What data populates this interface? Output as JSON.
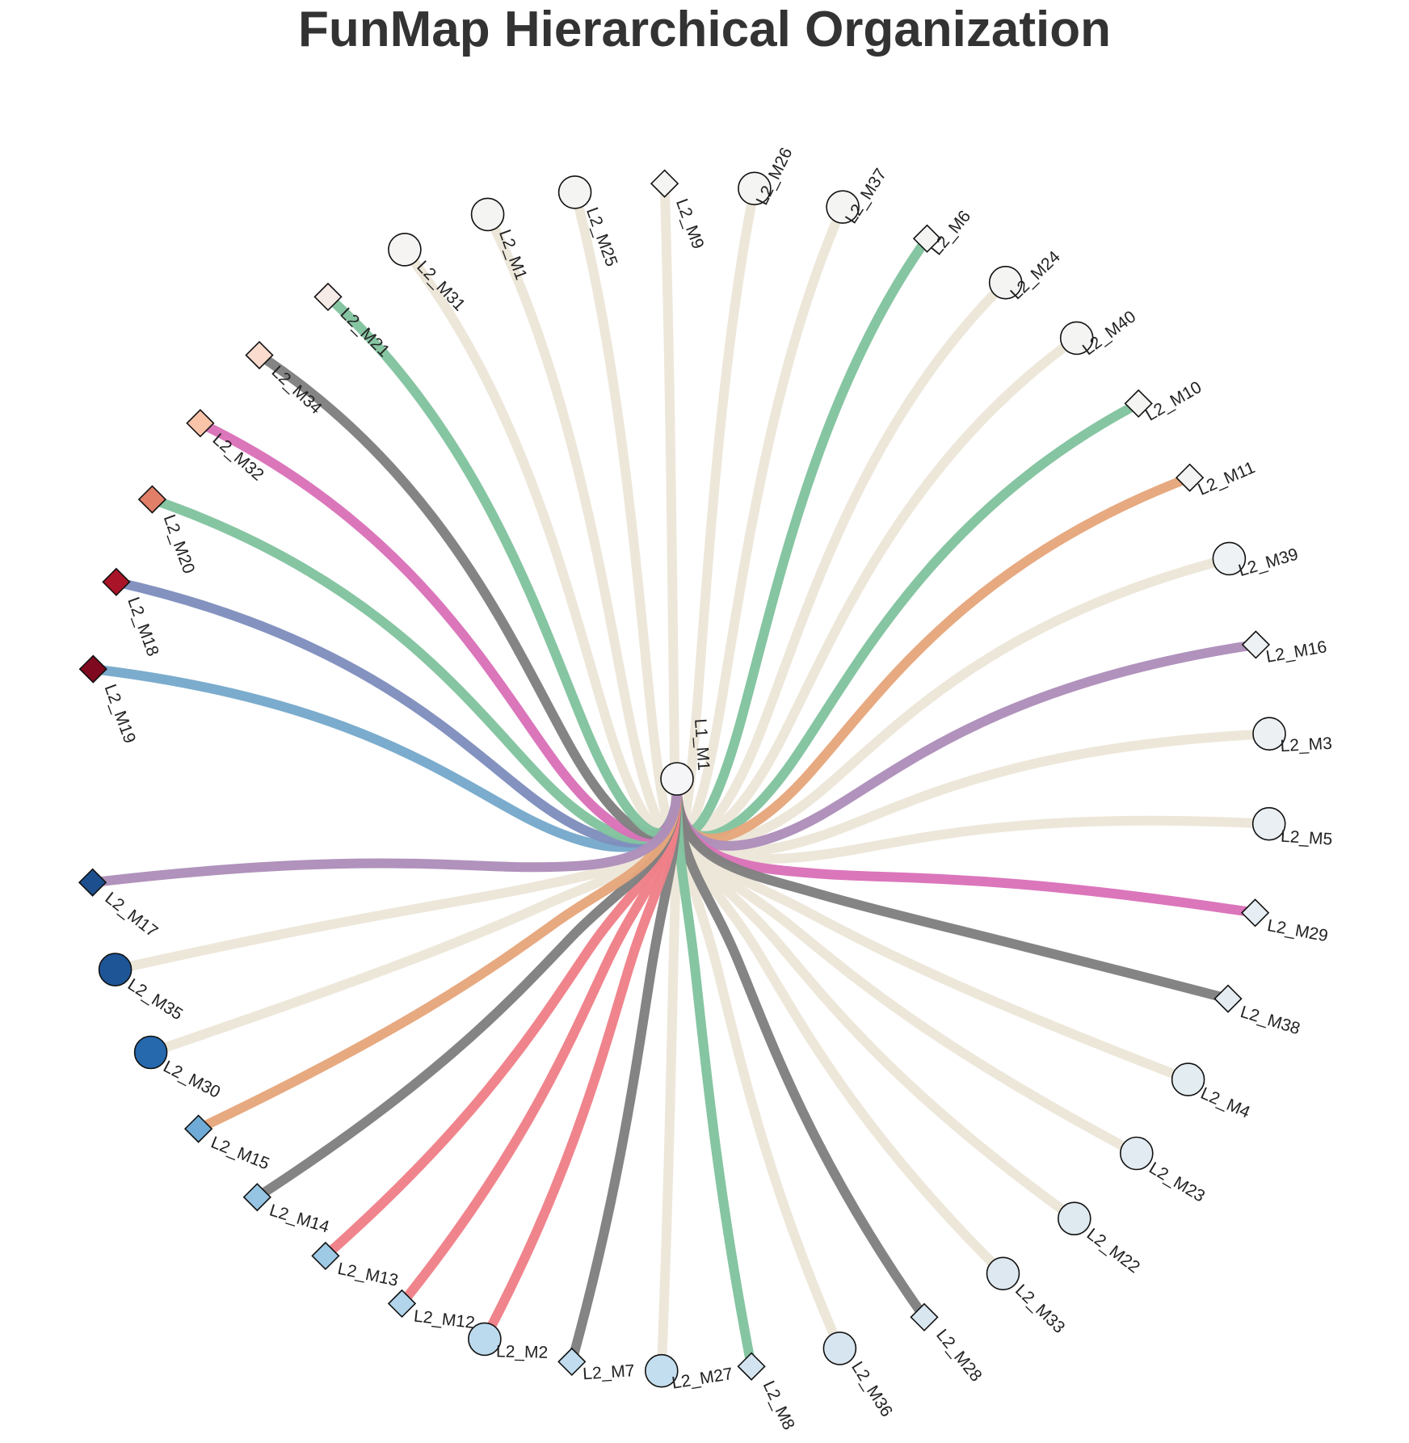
{
  "title": "FunMap Hierarchical Organization",
  "chart_data": {
    "type": "radial-tree",
    "root": {
      "name": "L1_M1",
      "fill": "#f5f5f7"
    },
    "nodes": [
      {
        "name": "L2_M19",
        "shape": "diamond",
        "fill": "#7f0a20",
        "edge": "#77a9cb"
      },
      {
        "name": "L2_M18",
        "shape": "diamond",
        "fill": "#aa1428",
        "edge": "#7f8ebd"
      },
      {
        "name": "L2_M20",
        "shape": "diamond",
        "fill": "#e17f68",
        "edge": "#82c39f"
      },
      {
        "name": "L2_M32",
        "shape": "diamond",
        "fill": "#f9c4a8",
        "edge": "#da72b9"
      },
      {
        "name": "L2_M34",
        "shape": "diamond",
        "fill": "#fbdbcd",
        "edge": "#808080"
      },
      {
        "name": "L2_M21",
        "shape": "diamond",
        "fill": "#f6ebe7",
        "edge": "#82c39f"
      },
      {
        "name": "L2_M31",
        "shape": "circle",
        "fill": "#f6f3f3",
        "edge": "#ede7da"
      },
      {
        "name": "L2_M1",
        "shape": "circle",
        "fill": "#f4f4f3",
        "edge": "#ede7da"
      },
      {
        "name": "L2_M25",
        "shape": "circle",
        "fill": "#f4f4f3",
        "edge": "#ede7da"
      },
      {
        "name": "L2_M9",
        "shape": "diamond",
        "fill": "#f4f4f3",
        "edge": "#ede7da"
      },
      {
        "name": "L2_M26",
        "shape": "circle",
        "fill": "#f4f4f3",
        "edge": "#ede7da"
      },
      {
        "name": "L2_M37",
        "shape": "circle",
        "fill": "#f4f4f3",
        "edge": "#ede7da"
      },
      {
        "name": "L2_M6",
        "shape": "diamond",
        "fill": "#f4f4f3",
        "edge": "#82c39f"
      },
      {
        "name": "L2_M24",
        "shape": "circle",
        "fill": "#f4f4f3",
        "edge": "#ede7da"
      },
      {
        "name": "L2_M40",
        "shape": "circle",
        "fill": "#f4f4f3",
        "edge": "#ede7da"
      },
      {
        "name": "L2_M10",
        "shape": "diamond",
        "fill": "#f4f4f3",
        "edge": "#82c39f"
      },
      {
        "name": "L2_M11",
        "shape": "diamond",
        "fill": "#f3f3f3",
        "edge": "#e6a67c"
      },
      {
        "name": "L2_M39",
        "shape": "circle",
        "fill": "#eff2f4",
        "edge": "#ede7da"
      },
      {
        "name": "L2_M16",
        "shape": "diamond",
        "fill": "#eef1f3",
        "edge": "#ad8eba"
      },
      {
        "name": "L2_M3",
        "shape": "circle",
        "fill": "#ecf0f3",
        "edge": "#ede7da"
      },
      {
        "name": "L2_M5",
        "shape": "circle",
        "fill": "#e9eff3",
        "edge": "#ede7da"
      },
      {
        "name": "L2_M29",
        "shape": "diamond",
        "fill": "#e7eef3",
        "edge": "#da72b9"
      },
      {
        "name": "L2_M38",
        "shape": "diamond",
        "fill": "#e5edf2",
        "edge": "#808080"
      },
      {
        "name": "L2_M4",
        "shape": "circle",
        "fill": "#e3ecf1",
        "edge": "#ede7da"
      },
      {
        "name": "L2_M23",
        "shape": "circle",
        "fill": "#e1ebf1",
        "edge": "#ede7da"
      },
      {
        "name": "L2_M22",
        "shape": "circle",
        "fill": "#dfe9f0",
        "edge": "#ede7da"
      },
      {
        "name": "L2_M33",
        "shape": "circle",
        "fill": "#dde8f0",
        "edge": "#ede7da"
      },
      {
        "name": "L2_M28",
        "shape": "diamond",
        "fill": "#d8e6f0",
        "edge": "#808080"
      },
      {
        "name": "L2_M36",
        "shape": "circle",
        "fill": "#d6e5f0",
        "edge": "#ede7da"
      },
      {
        "name": "L2_M8",
        "shape": "diamond",
        "fill": "#d3e4f0",
        "edge": "#82c39f"
      },
      {
        "name": "L2_M27",
        "shape": "circle",
        "fill": "#c3deee",
        "edge": "#ede7da"
      },
      {
        "name": "L2_M7",
        "shape": "diamond",
        "fill": "#c0dcee",
        "edge": "#808080"
      },
      {
        "name": "L2_M2",
        "shape": "circle",
        "fill": "#bcdaed",
        "edge": "#f08088"
      },
      {
        "name": "L2_M12",
        "shape": "diamond",
        "fill": "#b3d5eb",
        "edge": "#f08088"
      },
      {
        "name": "L2_M13",
        "shape": "diamond",
        "fill": "#9ecae6",
        "edge": "#f08088"
      },
      {
        "name": "L2_M14",
        "shape": "diamond",
        "fill": "#95c5e3",
        "edge": "#808080"
      },
      {
        "name": "L2_M15",
        "shape": "diamond",
        "fill": "#6fabd6",
        "edge": "#e6a67c"
      },
      {
        "name": "L2_M30",
        "shape": "circle",
        "fill": "#2669ad",
        "edge": "#ede7da"
      },
      {
        "name": "L2_M35",
        "shape": "circle",
        "fill": "#1e5597",
        "edge": "#ede7da"
      },
      {
        "name": "L2_M17",
        "shape": "diamond",
        "fill": "#1d4f8e",
        "edge": "#ad8eba"
      }
    ]
  }
}
